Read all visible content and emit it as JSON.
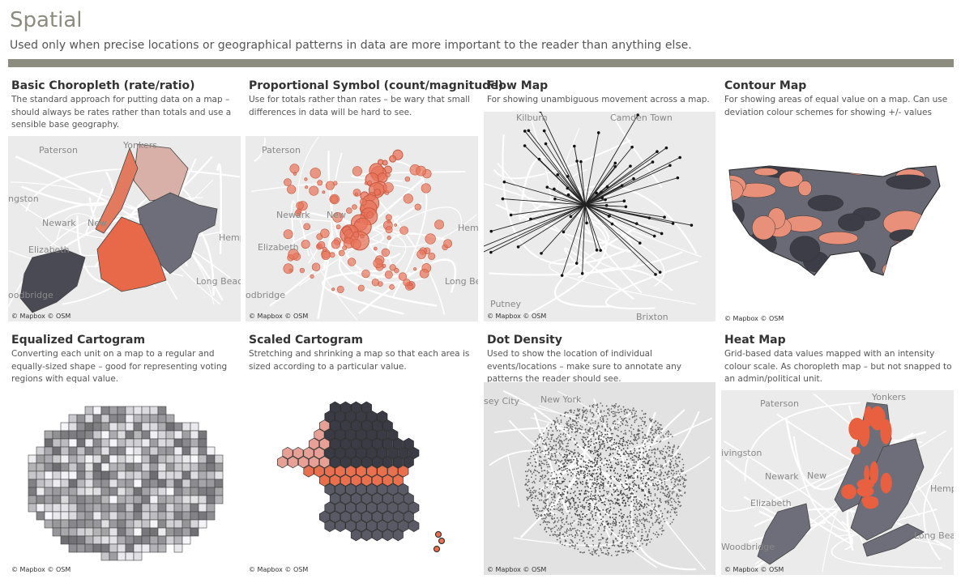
{
  "header": {
    "title": "Spatial",
    "subtitle": "Used only when precise locations or geographical patterns in data are more important to the reader than anything else."
  },
  "panels": [
    {
      "title": "Basic Choropleth (rate/ratio)",
      "description": "The standard approach for putting data on a map – should always be rates rather than totals and use a sensible base geography.",
      "labels": [
        "Yonkers",
        "Paterson",
        "ngston",
        "Newark",
        "New",
        "Hempste",
        "Elizabeth",
        "Long Beach",
        "oodbridge"
      ],
      "attribution": "© Mapbox © OSM"
    },
    {
      "title": "Proportional Symbol (count/magnitude)",
      "description": "Use for totals rather than rates – be wary that small differences in data will be hard to see.",
      "labels": [
        "Paterson",
        "Newark",
        "New",
        "Hemp",
        "Elizabeth",
        "Long Bea",
        "odbridge"
      ],
      "attribution": "© Mapbox © OSM"
    },
    {
      "title": "Flow Map",
      "description": "For showing unambiguous movement across a map.",
      "labels": [
        "Kilburn",
        "Camden Town",
        "Putney",
        "Brixton"
      ],
      "attribution": "© Mapbox © OSM"
    },
    {
      "title": "Contour Map",
      "description": "For showing areas of equal value on a map. Can use deviation colour schemes for showing +/- values",
      "labels": [],
      "attribution": "© Mapbox © OSM"
    },
    {
      "title": "Equalized Cartogram",
      "description": "Converting each unit on a map to a regular and equally-sized shape – good for representing voting regions with equal value.",
      "labels": [],
      "attribution": "© Mapbox © OSM"
    },
    {
      "title": "Scaled Cartogram",
      "description": "Stretching and shrinking a map so that each area is sized according to a particular value.",
      "labels": [],
      "attribution": "© Mapbox © OSM"
    },
    {
      "title": "Dot Density",
      "description": "Used to show the location of individual events/locations – make sure to annotate any patterns the reader should see.",
      "labels": [
        "sey City",
        "New York"
      ],
      "attribution": "© Mapbox © OSM"
    },
    {
      "title": "Heat Map",
      "description": "Grid-based data values mapped with an intensity colour scale. As choropleth map – but not snapped to an admin/political unit.",
      "labels": [
        "Yonkers",
        "Paterson",
        "ivingston",
        "Newark",
        "New",
        "Hempst",
        "Elizabeth",
        "Long Beach",
        "Woodbridge"
      ],
      "attribution": "© Mapbox © OSM"
    }
  ]
}
